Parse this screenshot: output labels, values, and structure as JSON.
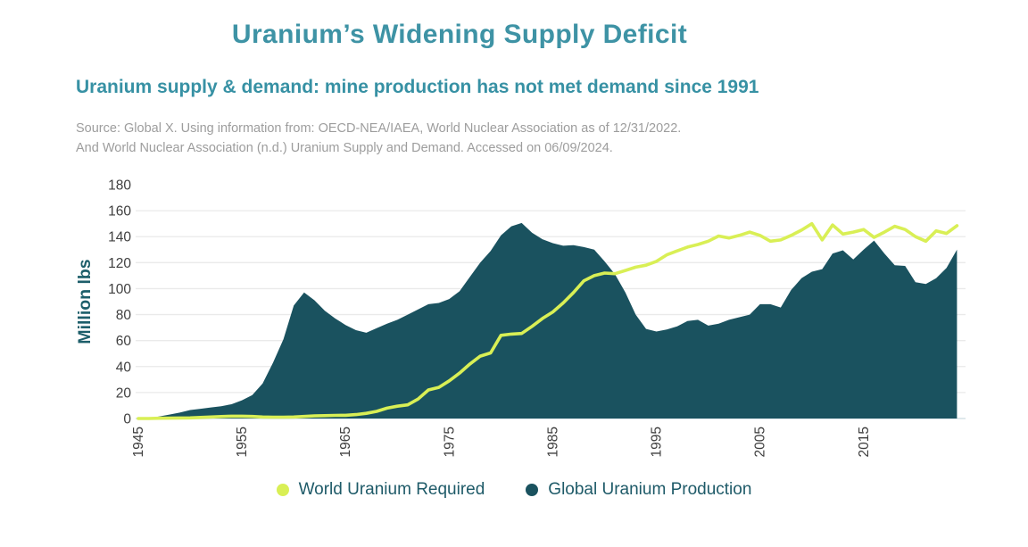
{
  "header": {
    "title": "Uranium’s Widening Supply Deficit",
    "subtitle": "Uranium supply & demand: mine production has not met demand since 1991",
    "source_line1": "Source: Global X. Using information from: OECD-NEA/IAEA, World Nuclear Association as of 12/31/2022.",
    "source_line2": "And World Nuclear Association (n.d.) Uranium Supply and Demand. Accessed on 06/09/2024."
  },
  "colors": {
    "title_teal": "#3e93a5",
    "subtitle_teal": "#3791a4",
    "source_gray": "#9d9d9d",
    "axis_text": "#3f3f3f",
    "axis_label_teal": "#1d5e6a",
    "legend_text": "#1e5a68",
    "gridline": "#eaeaea",
    "baseline": "#dfe9ec",
    "demand_line": "#d9ef55",
    "production_area": "#1a525f"
  },
  "chart_data": {
    "type": "area",
    "title": "Uranium supply & demand",
    "xlabel": "",
    "ylabel": "Million lbs",
    "ylim": [
      0,
      180
    ],
    "yticks": [
      0,
      20,
      40,
      60,
      80,
      100,
      120,
      140,
      160,
      180
    ],
    "xticks": [
      1945,
      1955,
      1965,
      1975,
      1985,
      1995,
      2005,
      2015
    ],
    "grid": true,
    "legend_position": "bottom",
    "x_start": 1945,
    "x_end": 2024,
    "x": [
      1945,
      1946,
      1947,
      1948,
      1949,
      1950,
      1951,
      1952,
      1953,
      1954,
      1955,
      1956,
      1957,
      1958,
      1959,
      1960,
      1961,
      1962,
      1963,
      1964,
      1965,
      1966,
      1967,
      1968,
      1969,
      1970,
      1971,
      1972,
      1973,
      1974,
      1975,
      1976,
      1977,
      1978,
      1979,
      1980,
      1981,
      1982,
      1983,
      1984,
      1985,
      1986,
      1987,
      1988,
      1989,
      1990,
      1991,
      1992,
      1993,
      1994,
      1995,
      1996,
      1997,
      1998,
      1999,
      2000,
      2001,
      2002,
      2003,
      2004,
      2005,
      2006,
      2007,
      2008,
      2009,
      2010,
      2011,
      2012,
      2013,
      2014,
      2015,
      2016,
      2017,
      2018,
      2019,
      2020,
      2021,
      2022,
      2023,
      2024
    ],
    "series": [
      {
        "name": "World Uranium Required",
        "style": "line",
        "color": "#d9ef55",
        "values": [
          0,
          0,
          0.2,
          0.3,
          0.4,
          0.5,
          0.8,
          1.2,
          1.5,
          1.8,
          1.8,
          1.6,
          1.2,
          1,
          1,
          1.2,
          1.6,
          2,
          2.2,
          2.4,
          2.5,
          3,
          4,
          5.5,
          8,
          9.5,
          10.5,
          15,
          22,
          24,
          29,
          35,
          42,
          48,
          50.5,
          64,
          65,
          65.5,
          71,
          77,
          82,
          89,
          97,
          106,
          110,
          112,
          111.5,
          114,
          116.5,
          118,
          121,
          126,
          129,
          132,
          134,
          136.5,
          140.5,
          139,
          141,
          143.5,
          141,
          136.5,
          137.5,
          141,
          145,
          150,
          137.5,
          149,
          142,
          143.5,
          145.5,
          139.5,
          143.5,
          148,
          145.5,
          140,
          136.5,
          144.5,
          142.5,
          148.5
        ]
      },
      {
        "name": "Global Uranium Production",
        "style": "area",
        "color": "#1a525f",
        "values": [
          0,
          0.3,
          1.5,
          3,
          4.5,
          6.5,
          7.5,
          8.5,
          9.5,
          11,
          14,
          18,
          27,
          43,
          61,
          87,
          97,
          91,
          83,
          77,
          72,
          68,
          66,
          69.5,
          73,
          76,
          80,
          84,
          88,
          89,
          92,
          98,
          109,
          120,
          129,
          141,
          148,
          150.5,
          143,
          138,
          135,
          133,
          133.5,
          132,
          130,
          121,
          111,
          97,
          80,
          69,
          67,
          68.5,
          71,
          75,
          76,
          71.5,
          73,
          76,
          78,
          80,
          88,
          88,
          85.5,
          99,
          108,
          113,
          115,
          127,
          129.5,
          122.5,
          130,
          137,
          127,
          118,
          117.5,
          105,
          103.5,
          108,
          116,
          130
        ]
      }
    ]
  },
  "legend": {
    "items": [
      {
        "label": "World Uranium Required",
        "color": "#d9ef55"
      },
      {
        "label": "Global Uranium Production",
        "color": "#1a525f"
      }
    ]
  }
}
